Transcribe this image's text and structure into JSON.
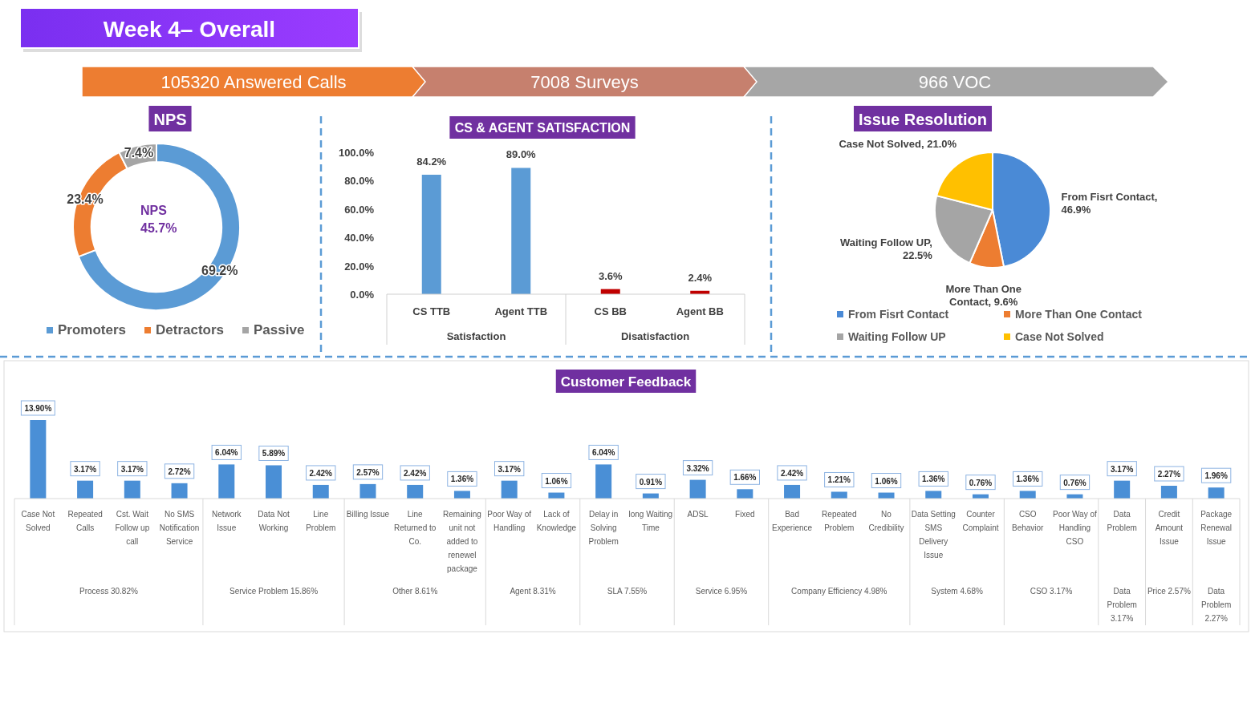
{
  "chart_data": [
    {
      "type": "other",
      "title": "Week 4– Overall",
      "annotations": [
        "105320 Answered Calls",
        "7008 Surveys",
        "966 VOC"
      ]
    },
    {
      "type": "donut",
      "title": "NPS",
      "categories": [
        "Promoters",
        "Detractors",
        "Passive"
      ],
      "values": [
        69.2,
        23.4,
        7.4
      ],
      "colors": [
        "#5b9bd5",
        "#ed7d31",
        "#a5a5a5"
      ],
      "value_labels": [
        "69.2%",
        "23.4%",
        "7.4%"
      ],
      "annotations": [
        "NPS",
        "45.7%"
      ],
      "legend": "bottom"
    },
    {
      "type": "bar",
      "title": "CS & AGENT SATISFACTION",
      "categories": [
        "CS TTB",
        "Agent TTB",
        "CS BB",
        "Agent BB"
      ],
      "values": [
        84.2,
        89.0,
        3.6,
        2.4
      ],
      "colors": [
        "#5b9bd5",
        "#5b9bd5",
        "#c00000",
        "#c00000"
      ],
      "value_labels": [
        "84.2%",
        "89.0%",
        "3.6%",
        "2.4%"
      ],
      "ylim": [
        0,
        100
      ],
      "yticks": [
        {
          "value": 0,
          "label": "0.0%"
        },
        {
          "value": 20,
          "label": "20.0%"
        },
        {
          "value": 40,
          "label": "40.0%"
        },
        {
          "value": 60,
          "label": "60.0%"
        },
        {
          "value": 80,
          "label": "80.0%"
        },
        {
          "value": 100,
          "label": "100.0%"
        }
      ],
      "annotations": [
        "Satisfaction",
        "Disatisfaction"
      ]
    },
    {
      "type": "pie",
      "title": "Issue Resolution",
      "categories": [
        "From Fisrt Contact",
        "More Than One Contact",
        "Waiting Follow UP",
        "Case Not Solved"
      ],
      "values": [
        46.9,
        9.6,
        22.5,
        21.0
      ],
      "colors": [
        "#4a8ad6",
        "#ed7d31",
        "#a5a5a5",
        "#ffc000"
      ],
      "value_labels": [
        "From Fisrt Contact, 46.9%",
        "More Than One Contact, 9.6%",
        "Waiting Follow UP, 22.5%",
        "Case Not Solved, 21.0%"
      ],
      "legend": "bottom"
    },
    {
      "type": "bar",
      "title": "Customer Feedback",
      "categories": [
        "Case Not Solved",
        "Repeated Calls",
        "Cst. Wait Follow up call",
        "No SMS Notification Service",
        "Network Issue",
        "Data Not Working",
        "Line Problem",
        "Billing Issue",
        "Line Returned to Co.",
        "Remaining unit not added to renewel package",
        "Poor Way of Handling",
        "Lack of Knowledge",
        "Delay in Solving Problem",
        "long Waiting Time",
        "ADSL",
        "Fixed",
        "Bad Experience",
        "Repeated Problem",
        "No Credibility",
        "Data Setting SMS Delivery Issue",
        "Counter Complaint",
        "CSO Behavior",
        "Poor Way of Handling CSO",
        "Data Problem",
        "Credit Amount Issue",
        "Package Renewal Issue"
      ],
      "values": [
        13.9,
        3.17,
        3.17,
        2.72,
        6.04,
        5.89,
        2.42,
        2.57,
        2.42,
        1.36,
        3.17,
        1.06,
        6.04,
        0.91,
        3.32,
        1.66,
        2.42,
        1.21,
        1.06,
        1.36,
        0.76,
        1.36,
        0.76,
        3.17,
        2.27,
        1.96
      ],
      "value_labels": [
        "13.90%",
        "3.17%",
        "3.17%",
        "2.72%",
        "6.04%",
        "5.89%",
        "2.42%",
        "2.57%",
        "2.42%",
        "1.36%",
        "3.17%",
        "1.06%",
        "6.04%",
        "0.91%",
        "3.32%",
        "1.66%",
        "2.42%",
        "1.21%",
        "1.06%",
        "1.36%",
        "0.76%",
        "1.36%",
        "0.76%",
        "3.17%",
        "2.27%",
        "1.96%"
      ],
      "colors": [
        "#4a8fd6",
        "#4a8fd6",
        "#4a8fd6",
        "#4a8fd6",
        "#4a8fd6",
        "#4a8fd6",
        "#4a8fd6",
        "#4a8fd6",
        "#4a8fd6",
        "#4a8fd6",
        "#4a8fd6",
        "#4a8fd6",
        "#4a8fd6",
        "#4a8fd6",
        "#4a8fd6",
        "#4a8fd6",
        "#4a8fd6",
        "#4a8fd6",
        "#4a8fd6",
        "#4a8fd6",
        "#4a8fd6",
        "#4a8fd6",
        "#4a8fd6",
        "#4a8fd6",
        "#4a8fd6",
        "#4a8fd6"
      ],
      "annotations": [
        "Process 30.82%",
        "Service Problem 15.86%",
        "Other 8.61%",
        "Agent 8.31%",
        "SLA 7.55%",
        "Service 6.95%",
        "Company Efficiency 4.98%",
        "System 4.68%",
        "CSO 3.17%",
        "Data Problem 3.17%",
        "Price 2.57%",
        "Data Problem 2.27%"
      ]
    }
  ]
}
